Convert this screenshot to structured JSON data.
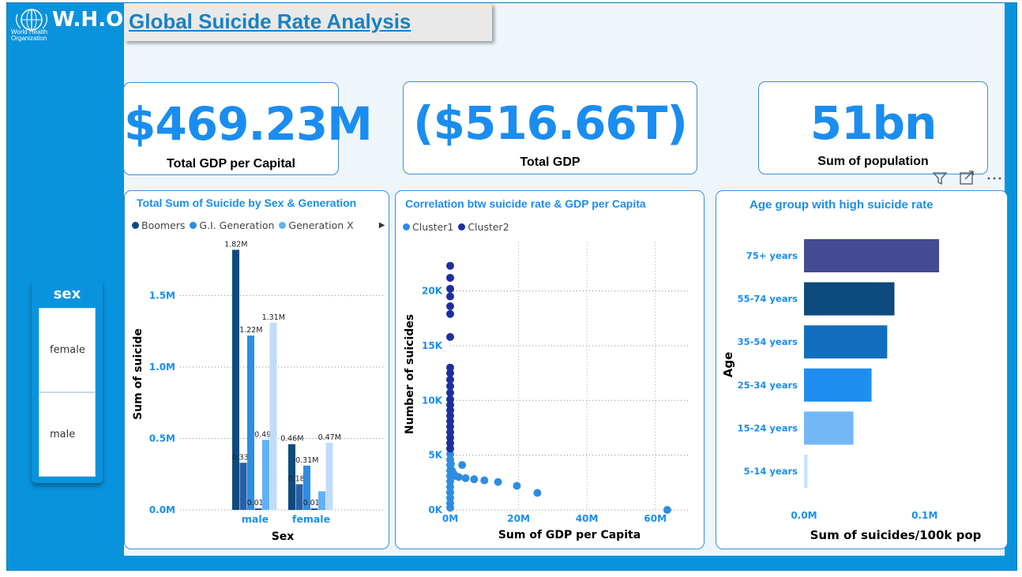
{
  "header": {
    "logo_text": "World Health Organization",
    "org": "W.H.O",
    "title": "Global Suicide Rate Analysis"
  },
  "kpis": [
    {
      "value": "$469.23M",
      "label": "Total GDP per Capital"
    },
    {
      "value": "($516.66T)",
      "label": "Total GDP"
    },
    {
      "value": "51bn",
      "label": "Sum of population"
    }
  ],
  "slicer": {
    "title": "sex",
    "options": [
      "female",
      "male"
    ]
  },
  "colors": {
    "accent": "#1a8df0",
    "frame": "#0a93dd",
    "boomers": "#0d4a7e",
    "gi": "#2e8de2",
    "genx": "#61b1f7"
  },
  "icons": {
    "filter": "filter-icon",
    "focus": "focus-mode-icon",
    "more": "more-options-icon"
  },
  "chart_data": [
    {
      "type": "bar",
      "title": "Total Sum of Suicide by Sex & Generation",
      "xlabel": "Sex",
      "ylabel": "Sum of suicide",
      "categories": [
        "male",
        "female"
      ],
      "ylim": [
        0,
        1900000
      ],
      "yticks": [
        "0.0M",
        "0.5M",
        "1.0M",
        "1.5M"
      ],
      "legend": [
        "Boomers",
        "G.I. Generation",
        "Generation X"
      ],
      "series": [
        {
          "name": "Boomers",
          "color": "#0d4a7e",
          "values": [
            1820000,
            460000
          ],
          "labels": [
            "1.82M",
            "0.46M"
          ]
        },
        {
          "name": "",
          "color": "#2560a8",
          "values": [
            330000,
            180000
          ],
          "labels": [
            "0.33M",
            "0.18M"
          ]
        },
        {
          "name": "G.I. Generation",
          "color": "#2e8de2",
          "values": [
            1220000,
            310000
          ],
          "labels": [
            "1.22M",
            "0.31M"
          ]
        },
        {
          "name": "",
          "color": "#1b3c7d",
          "values": [
            10000,
            10000
          ],
          "labels": [
            "0.01M",
            "0.01M"
          ]
        },
        {
          "name": "Generation X",
          "color": "#61b1f7",
          "values": [
            490000,
            130000
          ],
          "labels": [
            "0.49M",
            ""
          ]
        },
        {
          "name": "",
          "color": "#bfdcfa",
          "values": [
            1310000,
            470000
          ],
          "labels": [
            "1.31M",
            "0.47M"
          ]
        }
      ]
    },
    {
      "type": "scatter",
      "title": "Correlation btw suicide rate & GDP per Capita",
      "xlabel": "Sum of GDP per Capita",
      "ylabel": "Number of suicides",
      "xlim": [
        0,
        70000000
      ],
      "ylim": [
        0,
        23000
      ],
      "xticks": [
        "0M",
        "20M",
        "40M",
        "60M"
      ],
      "yticks": [
        "0K",
        "5K",
        "10K",
        "15K",
        "20K"
      ],
      "legend": [
        "Cluster1",
        "Cluster2"
      ],
      "series": [
        {
          "name": "Cluster1",
          "color": "#2e8de2",
          "points": [
            [
              200000,
              4200
            ],
            [
              500000,
              3600
            ],
            [
              1000000,
              3300
            ],
            [
              1500000,
              3100
            ],
            [
              2500000,
              3000
            ],
            [
              3500000,
              4100
            ],
            [
              4500000,
              2900
            ],
            [
              7000000,
              2800
            ],
            [
              10000000,
              2700
            ],
            [
              14000000,
              2550
            ],
            [
              19500000,
              2200
            ],
            [
              25500000,
              1550
            ],
            [
              63500000,
              0
            ],
            [
              0,
              200
            ],
            [
              0,
              600
            ],
            [
              0,
              1100
            ],
            [
              0,
              1600
            ],
            [
              0,
              2100
            ],
            [
              0,
              2600
            ],
            [
              0,
              3100
            ],
            [
              0,
              3600
            ],
            [
              0,
              4100
            ],
            [
              0,
              4600
            ],
            [
              0,
              5100
            ]
          ]
        },
        {
          "name": "Cluster2",
          "color": "#1d2fa0",
          "points": [
            [
              0,
              5600
            ],
            [
              0,
              6100
            ],
            [
              0,
              6600
            ],
            [
              0,
              7100
            ],
            [
              0,
              7600
            ],
            [
              0,
              8100
            ],
            [
              0,
              8600
            ],
            [
              0,
              9100
            ],
            [
              0,
              9600
            ],
            [
              0,
              10100
            ],
            [
              0,
              10700
            ],
            [
              0,
              11300
            ],
            [
              0,
              11900
            ],
            [
              0,
              12500
            ],
            [
              0,
              13000
            ],
            [
              0,
              15800
            ],
            [
              0,
              17900
            ],
            [
              0,
              18600
            ],
            [
              0,
              19500
            ],
            [
              0,
              20200
            ],
            [
              0,
              21200
            ],
            [
              0,
              22300
            ]
          ]
        }
      ]
    },
    {
      "type": "bar",
      "orientation": "horizontal",
      "title": "Age group with high suicide rate",
      "xlabel": "Sum of suicides/100k pop",
      "ylabel": "Age",
      "categories": [
        "75+ years",
        "55-74 years",
        "35-54 years",
        "25-34 years",
        "15-24 years",
        "5-14 years"
      ],
      "values": [
        112000,
        75000,
        69000,
        56000,
        41000,
        3000
      ],
      "colors": [
        "#444b93",
        "#0d4a7e",
        "#146ec0",
        "#1e8ef0",
        "#72b8f8",
        "#cbe2fb"
      ],
      "xlim": [
        0,
        150000
      ],
      "xticks": [
        "0.0M",
        "0.1M"
      ]
    }
  ]
}
